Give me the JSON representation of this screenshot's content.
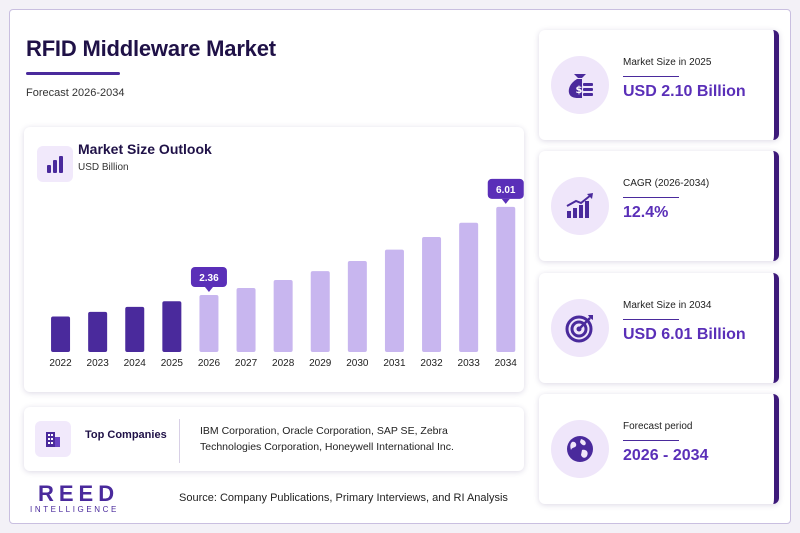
{
  "header": {
    "title": "RFID Middleware Market",
    "subtitle": "Forecast 2026-2034"
  },
  "chart_data": {
    "type": "bar",
    "title": "Market Size Outlook",
    "ylabel": "USD Billion",
    "categories": [
      "2022",
      "2023",
      "2024",
      "2025",
      "2026",
      "2027",
      "2028",
      "2029",
      "2030",
      "2031",
      "2032",
      "2033",
      "2034"
    ],
    "values": [
      1.47,
      1.66,
      1.87,
      2.1,
      2.36,
      2.65,
      2.98,
      3.35,
      3.77,
      4.24,
      4.76,
      5.35,
      6.01
    ],
    "historical_count": 4,
    "data_labels": [
      {
        "category": "2026",
        "value": "2.36"
      },
      {
        "category": "2034",
        "value": "6.01"
      }
    ],
    "ylim": [
      0,
      6.5
    ],
    "grid": false,
    "colors": {
      "historical": "#4a2a9c",
      "forecast": "#c8b6ef",
      "label_bg": "#5a2fb8"
    }
  },
  "chart_icon": "bar-chart-icon",
  "companies": {
    "label": "Top Companies",
    "icon": "building-icon",
    "text": "IBM Corporation, Oracle Corporation, SAP SE, Zebra Technologies Corporation, Honeywell International Inc."
  },
  "brand": {
    "name": "REED",
    "tagline": "INTELLIGENCE"
  },
  "source": "Source: Company Publications, Primary Interviews, and RI Analysis",
  "stats": [
    {
      "label": "Market Size in 2025",
      "value": "USD 2.10 Billion",
      "icon": "money-bag-icon"
    },
    {
      "label": "CAGR (2026-2034)",
      "value": "12.4%",
      "icon": "growth-chart-icon"
    },
    {
      "label": "Market Size in 2034",
      "value": "USD 6.01 Billion",
      "icon": "target-icon"
    },
    {
      "label": "Forecast period",
      "value": "2026 - 2034",
      "icon": "globe-icon"
    }
  ],
  "colors": {
    "accent": "#5a2fb8",
    "dark": "#1f1147",
    "light": "#efe6fa"
  }
}
